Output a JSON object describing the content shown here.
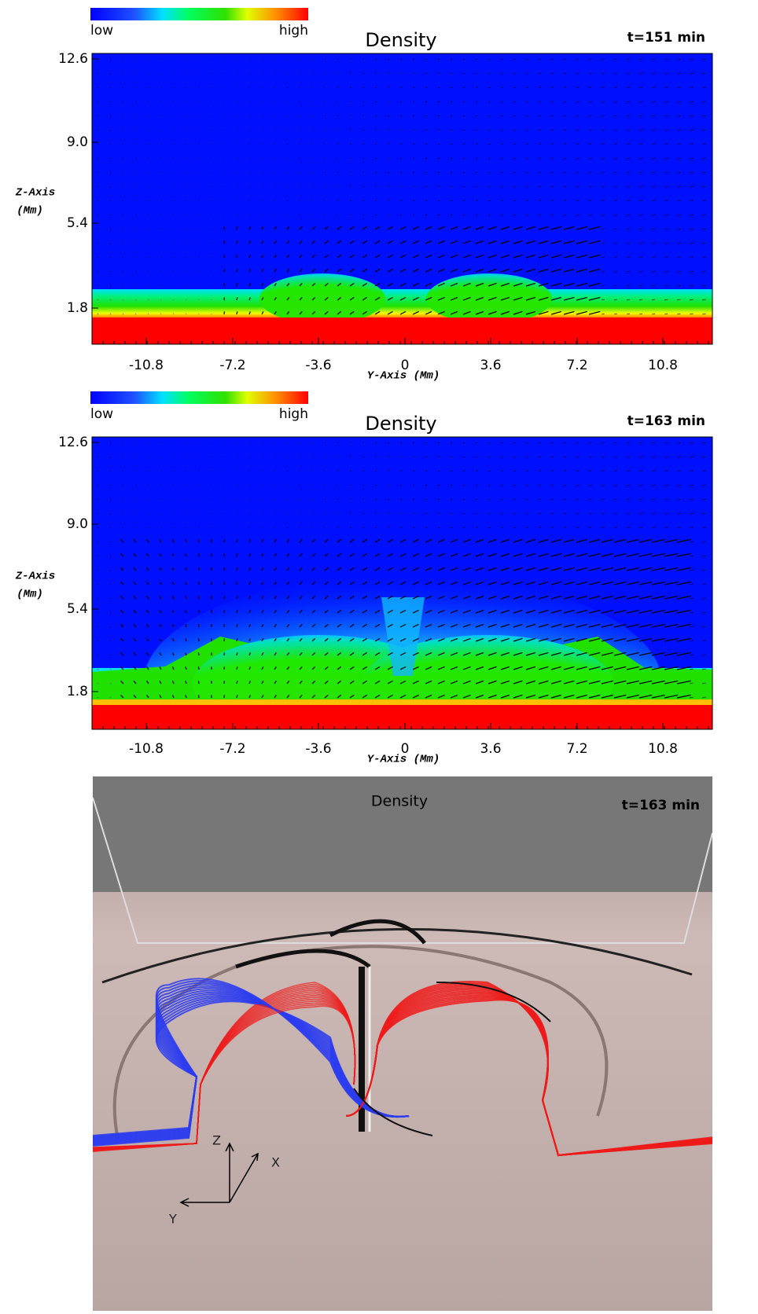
{
  "panels": [
    {
      "colorbar": {
        "low": "low",
        "high": "high"
      },
      "title": "Density",
      "time": "t=151 min",
      "z_axis": "Z-Axis",
      "z_unit": "(Mm)",
      "y_axis": "Y-Axis (Mm)",
      "zticks": [
        "12.6",
        "9.0",
        "5.4",
        "1.8"
      ],
      "yticks": [
        "-10.8",
        "-7.2",
        "-3.6",
        "0",
        "3.6",
        "7.2",
        "10.8"
      ]
    },
    {
      "colorbar": {
        "low": "low",
        "high": "high"
      },
      "title": "Density",
      "time": "t=163 min",
      "z_axis": "Z-Axis",
      "z_unit": "(Mm)",
      "y_axis": "Y-Axis (Mm)",
      "zticks": [
        "12.6",
        "9.0",
        "5.4",
        "1.8"
      ],
      "yticks": [
        "-10.8",
        "-7.2",
        "-3.6",
        "0",
        "3.6",
        "7.2",
        "10.8"
      ]
    },
    {
      "title": "Density",
      "time": "t=163 min",
      "axes": [
        "Z",
        "X",
        "Y"
      ]
    }
  ]
}
